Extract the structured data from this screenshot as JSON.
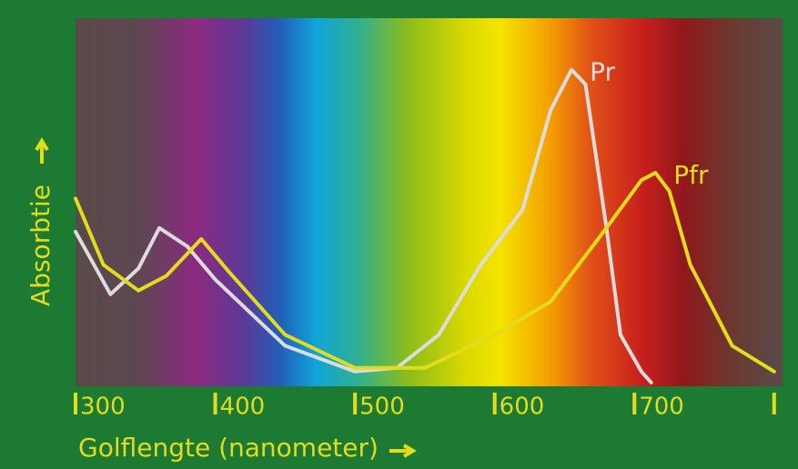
{
  "chart_data": {
    "type": "line",
    "xlabel": "Golflengte (nanometer)",
    "ylabel": "Absorbtie",
    "xlim": [
      300,
      806
    ],
    "ylim": [
      0,
      1
    ],
    "xticks": [
      300,
      400,
      500,
      600,
      700,
      {
        "value": 800,
        "label": null
      }
    ],
    "series": [
      {
        "name": "Pr",
        "color": "#dcdcdc",
        "x": [
          300,
          325,
          345,
          360,
          380,
          400,
          450,
          500,
          530,
          560,
          590,
          620,
          640,
          655,
          665,
          680,
          690,
          705,
          712
        ],
        "values": [
          0.42,
          0.25,
          0.32,
          0.43,
          0.38,
          0.29,
          0.11,
          0.04,
          0.05,
          0.14,
          0.33,
          0.48,
          0.75,
          0.86,
          0.82,
          0.43,
          0.14,
          0.04,
          0.01
        ]
      },
      {
        "name": "Pfr",
        "color": "#e3dc1c",
        "x": [
          300,
          320,
          345,
          365,
          390,
          410,
          450,
          500,
          550,
          600,
          640,
          680,
          705,
          715,
          725,
          740,
          770,
          800
        ],
        "values": [
          0.51,
          0.33,
          0.26,
          0.3,
          0.4,
          0.31,
          0.14,
          0.05,
          0.05,
          0.14,
          0.23,
          0.43,
          0.56,
          0.58,
          0.53,
          0.33,
          0.11,
          0.04
        ]
      }
    ]
  }
}
